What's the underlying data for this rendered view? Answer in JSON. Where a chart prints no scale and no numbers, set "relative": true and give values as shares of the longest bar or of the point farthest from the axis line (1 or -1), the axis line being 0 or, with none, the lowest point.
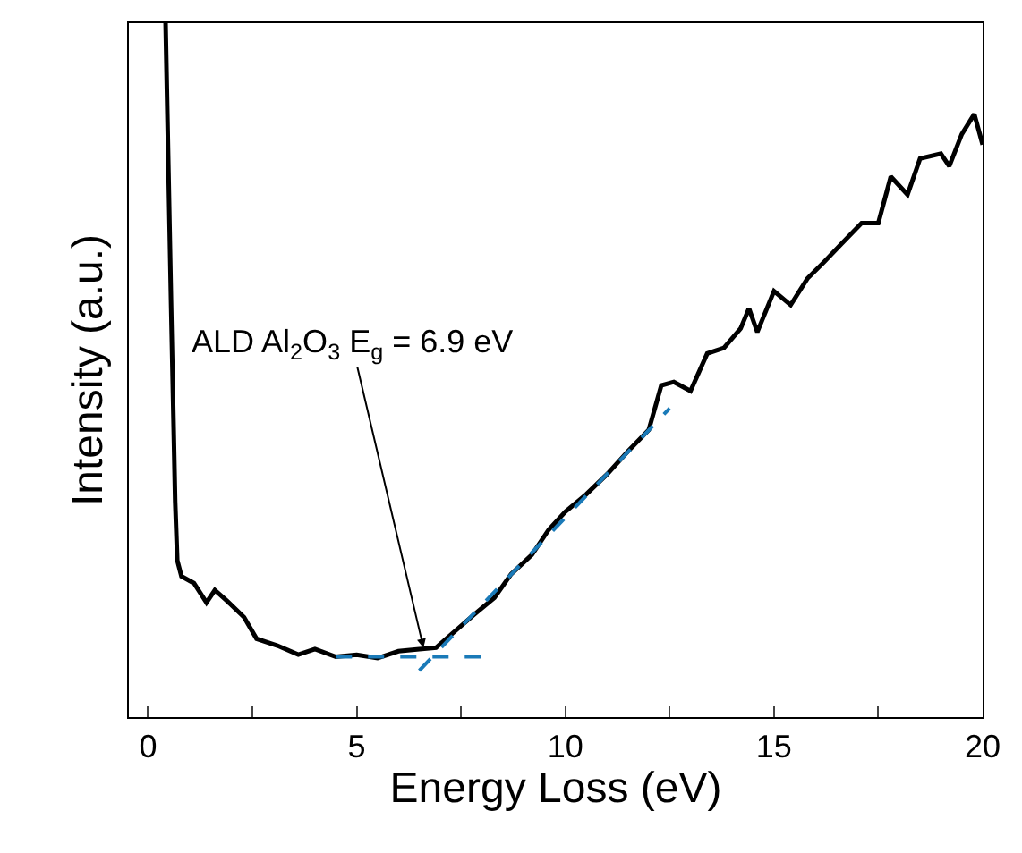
{
  "chart_data": {
    "type": "line",
    "relative": true,
    "xlabel": "Energy Loss (eV)",
    "ylabel": "Intensity (a.u.)",
    "xlim": [
      -0.46,
      20
    ],
    "xticks": [
      0,
      {
        "value": 2.5,
        "label": null
      },
      5,
      {
        "value": 7.5,
        "label": null
      },
      10,
      {
        "value": 12.5,
        "label": null
      },
      15,
      {
        "value": 17.5,
        "label": null
      },
      20
    ],
    "marker": "none",
    "annotations": [
      {
        "text": "ALD Al$_{2}$O$_{3}$ E$_{g}$ = 6.9 eV",
        "x": 6.6,
        "y": 0.1
      }
    ],
    "series": [
      {
        "color": "#000000",
        "line_style": "solid",
        "x": [
          0.42,
          0.55,
          0.65,
          0.7,
          0.8,
          1.1,
          1.4,
          1.6,
          1.9,
          2.3,
          2.6,
          3.1,
          3.6,
          4.0,
          4.5,
          5.0,
          5.5,
          6.0,
          6.5,
          6.9,
          7.3,
          7.8,
          8.3,
          8.7,
          9.2,
          9.6,
          10.0,
          10.5,
          11.0,
          11.5,
          12.0,
          12.3,
          12.6,
          13.0,
          13.4,
          13.8,
          14.2,
          14.4,
          14.6,
          15.0,
          15.4,
          15.8,
          16.2,
          16.6,
          17.1,
          17.5,
          17.8,
          18.2,
          18.5,
          19.0,
          19.2,
          19.5,
          19.8,
          20.0
        ],
        "values": [
          1.0,
          0.6,
          0.31,
          0.226,
          0.203,
          0.193,
          0.165,
          0.183,
          0.167,
          0.144,
          0.113,
          0.103,
          0.09,
          0.098,
          0.087,
          0.09,
          0.085,
          0.095,
          0.098,
          0.1,
          0.121,
          0.147,
          0.172,
          0.206,
          0.234,
          0.27,
          0.296,
          0.321,
          0.35,
          0.383,
          0.414,
          0.478,
          0.483,
          0.47,
          0.524,
          0.532,
          0.56,
          0.589,
          0.555,
          0.614,
          0.594,
          0.632,
          0.656,
          0.681,
          0.712,
          0.712,
          0.779,
          0.753,
          0.805,
          0.812,
          0.794,
          0.84,
          0.869,
          0.825
        ]
      },
      {
        "color": "#1a7ab8",
        "line_style": "dashed",
        "x": [
          4.5,
          8.0
        ],
        "values": [
          0.087,
          0.087
        ]
      },
      {
        "color": "#1a7ab8",
        "line_style": "dashed",
        "x": [
          6.5,
          12.5
        ],
        "values": [
          0.067,
          0.445
        ]
      }
    ]
  }
}
